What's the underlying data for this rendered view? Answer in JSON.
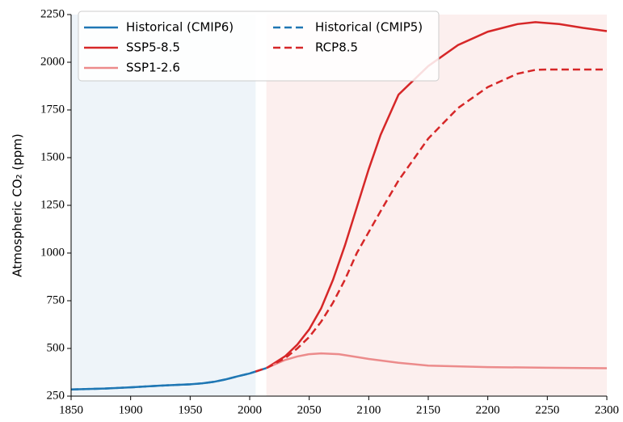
{
  "chart_data": {
    "type": "line",
    "y_label": "Atmospheric CO₂ (ppm)",
    "xlim": [
      1850,
      2300
    ],
    "xticks": [
      1850,
      1900,
      1950,
      2000,
      2050,
      2100,
      2150,
      2200,
      2250,
      2300
    ],
    "ylim": [
      250,
      2250
    ],
    "yticks": [
      250,
      500,
      750,
      1000,
      1250,
      1500,
      1750,
      2000,
      2250
    ],
    "legend": "upper left",
    "legend_columns": 2,
    "shaded_regions": [
      {
        "xlim": [
          1850,
          2005
        ],
        "color": "#eef4f9"
      },
      {
        "xlim": [
          2014,
          2300
        ],
        "color": "#fcefee"
      }
    ],
    "series": [
      {
        "name": "Historical (CMIP6)",
        "color": "#1f77b4",
        "dashed": false,
        "x": [
          1850,
          1875,
          1900,
          1925,
          1950,
          1960,
          1970,
          1980,
          1990,
          2000,
          2014
        ],
        "values": [
          285,
          289,
          296,
          305,
          312,
          317,
          325,
          338,
          354,
          369,
          397
        ]
      },
      {
        "name": "SSP5-8.5",
        "color": "#d62728",
        "dashed": false,
        "x": [
          2015,
          2030,
          2040,
          2050,
          2060,
          2070,
          2080,
          2090,
          2100,
          2110,
          2125,
          2150,
          2175,
          2200,
          2225,
          2240,
          2260,
          2280,
          2300
        ],
        "values": [
          400,
          460,
          520,
          600,
          710,
          860,
          1040,
          1240,
          1440,
          1620,
          1830,
          1980,
          2090,
          2160,
          2200,
          2210,
          2200,
          2180,
          2163
        ]
      },
      {
        "name": "SSP1-2.6",
        "color": "#ec8b8b",
        "dashed": false,
        "x": [
          2015,
          2030,
          2040,
          2050,
          2060,
          2075,
          2090,
          2100,
          2125,
          2150,
          2200,
          2250,
          2300
        ],
        "values": [
          400,
          440,
          458,
          470,
          474,
          470,
          455,
          445,
          425,
          410,
          402,
          399,
          396
        ]
      },
      {
        "name": "Historical (CMIP5)",
        "color": "#1f77b4",
        "dashed": true,
        "x": [
          1850,
          1875,
          1900,
          1925,
          1950,
          1960,
          1970,
          1980,
          1990,
          2000,
          2005
        ],
        "values": [
          285,
          289,
          296,
          305,
          312,
          317,
          325,
          338,
          354,
          369,
          379
        ]
      },
      {
        "name": "RCP8.5",
        "color": "#d62728",
        "dashed": true,
        "x": [
          2005,
          2015,
          2030,
          2040,
          2050,
          2060,
          2070,
          2080,
          2090,
          2100,
          2110,
          2125,
          2150,
          2175,
          2200,
          2225,
          2240,
          2250,
          2300
        ],
        "values": [
          379,
          400,
          450,
          500,
          560,
          640,
          740,
          860,
          1000,
          1110,
          1220,
          1380,
          1600,
          1760,
          1870,
          1940,
          1960,
          1962,
          1962
        ]
      }
    ]
  }
}
